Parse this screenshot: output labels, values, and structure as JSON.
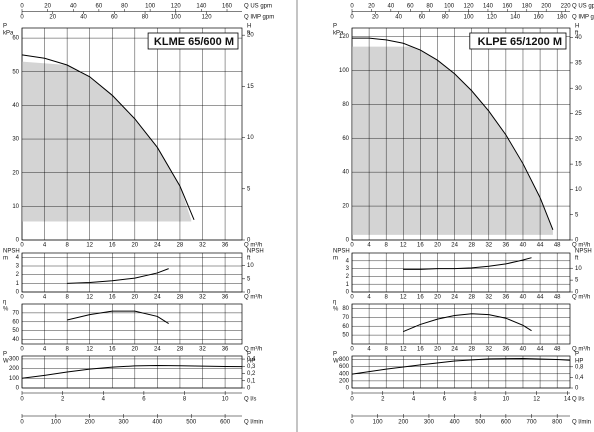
{
  "chart_data": [
    {
      "type": "pump-curve",
      "title": "KLME 65/600 M",
      "q_label": "Q m³/h",
      "xlim": [
        0,
        39
      ],
      "xticks": [
        0,
        4,
        8,
        12,
        16,
        20,
        24,
        28,
        32,
        36
      ],
      "top_axes": [
        {
          "label": "Q US gpm",
          "xlim": [
            0,
            171.7
          ],
          "xticks": [
            0,
            20,
            40,
            60,
            80,
            100,
            120,
            140,
            160
          ]
        },
        {
          "label": "Q IMP gpm",
          "xlim": [
            0,
            143
          ],
          "xticks": [
            0,
            20,
            40,
            60,
            80,
            100,
            120
          ]
        }
      ],
      "bottom_axes": [
        {
          "label": "Q l/s",
          "xlim": [
            0,
            10.83
          ],
          "xticks": [
            0,
            2,
            4,
            6,
            8,
            10
          ]
        },
        {
          "label": "Q l/min",
          "xlim": [
            0,
            650
          ],
          "xticks": [
            0,
            100,
            200,
            300,
            400,
            500,
            600
          ]
        }
      ],
      "plots": [
        {
          "y_label": [
            "P",
            "kPa"
          ],
          "y2_label": [
            "H",
            "ft"
          ],
          "ylim": [
            0,
            63
          ],
          "yticks": [
            0,
            10,
            20,
            30,
            40,
            50,
            60
          ],
          "y2lim": [
            0,
            20.7
          ],
          "y2ticks": [
            0,
            5,
            10,
            15,
            20
          ],
          "x": [
            0,
            4,
            8,
            12,
            16,
            20,
            24,
            28,
            30.5
          ],
          "values": [
            55,
            54,
            52,
            48.5,
            43,
            36,
            27.5,
            16,
            6
          ],
          "shaded": {
            "x": [
              0,
              8,
              12,
              16,
              20,
              24,
              28,
              30
            ],
            "values": [
              53,
              52,
              48.5,
              43,
              36,
              27.5,
              16,
              6
            ],
            "floor": 5.5
          }
        },
        {
          "y_label": [
            "NPSH",
            "m"
          ],
          "y2_label": [
            "NPSH",
            "ft"
          ],
          "ylim": [
            0,
            4.5
          ],
          "yticks": [
            0,
            1,
            2,
            3,
            4
          ],
          "y2lim": [
            0,
            14.8
          ],
          "y2ticks": [
            0,
            5,
            10
          ],
          "x": [
            8,
            12,
            16,
            20,
            24,
            26
          ],
          "values": [
            1.0,
            1.1,
            1.3,
            1.6,
            2.2,
            2.7
          ]
        },
        {
          "y_label": [
            "η",
            "%"
          ],
          "ylim": [
            35,
            80
          ],
          "yticks": [
            40,
            50,
            60,
            70
          ],
          "x": [
            8,
            12,
            16,
            20,
            24,
            26
          ],
          "values": [
            62,
            68,
            72,
            72,
            66,
            58
          ]
        },
        {
          "y_label": [
            "P",
            "W"
          ],
          "y2_label": [
            "P",
            "HP"
          ],
          "ylim": [
            0,
            330
          ],
          "yticks": [
            0,
            100,
            200,
            300
          ],
          "y2lim": [
            0,
            0.4425
          ],
          "y2ticks": [
            0,
            {
              "value": 0.1,
              "label": "0,1"
            },
            {
              "value": 0.2,
              "label": "0,2"
            },
            {
              "value": 0.3,
              "label": "0,3"
            },
            {
              "value": 0.4,
              "label": "0,4"
            }
          ],
          "x": [
            0,
            4,
            8,
            12,
            16,
            20,
            24,
            28,
            32,
            36,
            39
          ],
          "values": [
            100,
            130,
            165,
            195,
            215,
            228,
            232,
            230,
            225,
            222,
            220
          ]
        }
      ]
    },
    {
      "type": "pump-curve",
      "title": "KLPE 65/1200 M",
      "q_label": "Q m³/h",
      "xlim": [
        0,
        51
      ],
      "xticks": [
        0,
        4,
        8,
        12,
        16,
        20,
        24,
        28,
        32,
        36,
        40,
        44,
        48
      ],
      "top_axes": [
        {
          "label": "Q US gpm",
          "xlim": [
            0,
            224.5
          ],
          "xticks": [
            0,
            20,
            40,
            60,
            80,
            100,
            120,
            140,
            160,
            180,
            200,
            220
          ]
        },
        {
          "label": "Q IMP gpm",
          "xlim": [
            0,
            187
          ],
          "xticks": [
            0,
            20,
            40,
            60,
            80,
            100,
            120,
            140,
            160,
            180
          ]
        }
      ],
      "bottom_axes": [
        {
          "label": "Q l/s",
          "xlim": [
            0,
            14.17
          ],
          "xticks": [
            0,
            2,
            4,
            6,
            8,
            10,
            12,
            14
          ]
        },
        {
          "label": "Q l/min",
          "xlim": [
            0,
            850
          ],
          "xticks": [
            0,
            100,
            200,
            300,
            400,
            500,
            600,
            700,
            800
          ]
        }
      ],
      "plots": [
        {
          "y_label": [
            "P",
            "kPa"
          ],
          "y2_label": [
            "H",
            "ft"
          ],
          "ylim": [
            0,
            125
          ],
          "yticks": [
            0,
            20,
            40,
            60,
            80,
            100,
            120
          ],
          "y2lim": [
            0,
            41.9
          ],
          "y2ticks": [
            0,
            5,
            10,
            15,
            20,
            25,
            30,
            35,
            40
          ],
          "x": [
            0,
            4,
            8,
            12,
            16,
            20,
            24,
            28,
            32,
            36,
            40,
            44,
            47
          ],
          "values": [
            119,
            119,
            118,
            116,
            112,
            106,
            98,
            88,
            76,
            62,
            45,
            25,
            6
          ],
          "shaded": {
            "x": [
              0,
              14,
              16,
              20,
              24,
              28,
              32,
              36,
              40,
              44,
              47
            ],
            "values": [
              114,
              114,
              112,
              106,
              98,
              88,
              76,
              62,
              45,
              25,
              6
            ],
            "floor": 3
          }
        },
        {
          "y_label": [
            "NPSH",
            "m"
          ],
          "y2_label": [
            "NPSH",
            "ft"
          ],
          "ylim": [
            0,
            5
          ],
          "yticks": [
            0,
            1,
            2,
            3,
            4
          ],
          "y2lim": [
            0,
            16.4
          ],
          "y2ticks": [
            0,
            5,
            10
          ],
          "x": [
            12,
            16,
            20,
            24,
            28,
            32,
            36,
            40,
            42
          ],
          "values": [
            2.9,
            2.9,
            3.0,
            3.0,
            3.1,
            3.3,
            3.6,
            4.1,
            4.4
          ]
        },
        {
          "y_label": [
            "η",
            "%"
          ],
          "ylim": [
            40,
            85
          ],
          "yticks": [
            50,
            60,
            70,
            80
          ],
          "x": [
            12,
            16,
            20,
            24,
            28,
            32,
            36,
            40,
            42
          ],
          "values": [
            54,
            62,
            68,
            72,
            74,
            73,
            69,
            61,
            55
          ]
        },
        {
          "y_label": [
            "P",
            "W"
          ],
          "y2_label": [
            "P",
            "HP"
          ],
          "ylim": [
            0,
            900
          ],
          "yticks": [
            0,
            200,
            400,
            600,
            800
          ],
          "y2lim": [
            0,
            1.207
          ],
          "y2ticks": [
            0,
            {
              "value": 0.4,
              "label": "0,4"
            },
            {
              "value": 0.8,
              "label": "0,8"
            }
          ],
          "x": [
            0,
            8,
            16,
            24,
            32,
            40,
            48,
            51
          ],
          "values": [
            390,
            530,
            650,
            760,
            820,
            830,
            800,
            780
          ]
        }
      ]
    }
  ]
}
